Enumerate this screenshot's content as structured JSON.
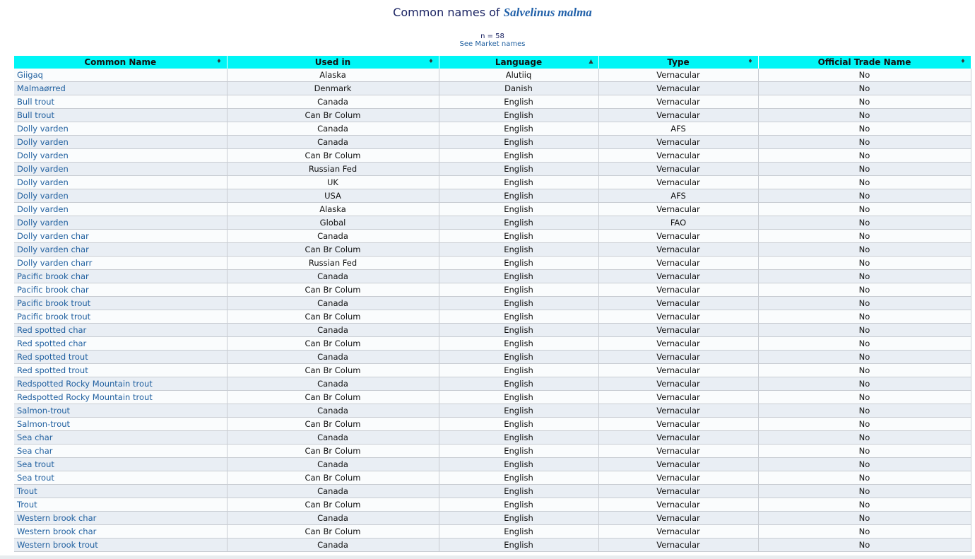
{
  "header": {
    "title_prefix": "Common names of",
    "species": "Salvelinus malma",
    "count": "n = 58",
    "market_link": "See Market names"
  },
  "table": {
    "columns": [
      {
        "label": "Common Name",
        "sort": "both"
      },
      {
        "label": "Used in",
        "sort": "both"
      },
      {
        "label": "Language",
        "sort": "asc"
      },
      {
        "label": "Type",
        "sort": "both"
      },
      {
        "label": "Official Trade Name",
        "sort": "both"
      }
    ],
    "rows": [
      [
        "Giigaq",
        "Alaska",
        "Alutiiq",
        "Vernacular",
        "No"
      ],
      [
        "Malmaørred",
        "Denmark",
        "Danish",
        "Vernacular",
        "No"
      ],
      [
        "Bull trout",
        "Canada",
        "English",
        "Vernacular",
        "No"
      ],
      [
        "Bull trout",
        "Can Br Colum",
        "English",
        "Vernacular",
        "No"
      ],
      [
        "Dolly varden",
        "Canada",
        "English",
        "AFS",
        "No"
      ],
      [
        "Dolly varden",
        "Canada",
        "English",
        "Vernacular",
        "No"
      ],
      [
        "Dolly varden",
        "Can Br Colum",
        "English",
        "Vernacular",
        "No"
      ],
      [
        "Dolly varden",
        "Russian Fed",
        "English",
        "Vernacular",
        "No"
      ],
      [
        "Dolly varden",
        "UK",
        "English",
        "Vernacular",
        "No"
      ],
      [
        "Dolly varden",
        "USA",
        "English",
        "AFS",
        "No"
      ],
      [
        "Dolly varden",
        "Alaska",
        "English",
        "Vernacular",
        "No"
      ],
      [
        "Dolly varden",
        "Global",
        "English",
        "FAO",
        "No"
      ],
      [
        "Dolly varden char",
        "Canada",
        "English",
        "Vernacular",
        "No"
      ],
      [
        "Dolly varden char",
        "Can Br Colum",
        "English",
        "Vernacular",
        "No"
      ],
      [
        "Dolly varden charr",
        "Russian Fed",
        "English",
        "Vernacular",
        "No"
      ],
      [
        "Pacific brook char",
        "Canada",
        "English",
        "Vernacular",
        "No"
      ],
      [
        "Pacific brook char",
        "Can Br Colum",
        "English",
        "Vernacular",
        "No"
      ],
      [
        "Pacific brook trout",
        "Canada",
        "English",
        "Vernacular",
        "No"
      ],
      [
        "Pacific brook trout",
        "Can Br Colum",
        "English",
        "Vernacular",
        "No"
      ],
      [
        "Red spotted char",
        "Canada",
        "English",
        "Vernacular",
        "No"
      ],
      [
        "Red spotted char",
        "Can Br Colum",
        "English",
        "Vernacular",
        "No"
      ],
      [
        "Red spotted trout",
        "Canada",
        "English",
        "Vernacular",
        "No"
      ],
      [
        "Red spotted trout",
        "Can Br Colum",
        "English",
        "Vernacular",
        "No"
      ],
      [
        "Redspotted Rocky Mountain trout",
        "Canada",
        "English",
        "Vernacular",
        "No"
      ],
      [
        "Redspotted Rocky Mountain trout",
        "Can Br Colum",
        "English",
        "Vernacular",
        "No"
      ],
      [
        "Salmon-trout",
        "Canada",
        "English",
        "Vernacular",
        "No"
      ],
      [
        "Salmon-trout",
        "Can Br Colum",
        "English",
        "Vernacular",
        "No"
      ],
      [
        "Sea char",
        "Canada",
        "English",
        "Vernacular",
        "No"
      ],
      [
        "Sea char",
        "Can Br Colum",
        "English",
        "Vernacular",
        "No"
      ],
      [
        "Sea trout",
        "Canada",
        "English",
        "Vernacular",
        "No"
      ],
      [
        "Sea trout",
        "Can Br Colum",
        "English",
        "Vernacular",
        "No"
      ],
      [
        "Trout",
        "Canada",
        "English",
        "Vernacular",
        "No"
      ],
      [
        "Trout",
        "Can Br Colum",
        "English",
        "Vernacular",
        "No"
      ],
      [
        "Western brook char",
        "Canada",
        "English",
        "Vernacular",
        "No"
      ],
      [
        "Western brook char",
        "Can Br Colum",
        "English",
        "Vernacular",
        "No"
      ],
      [
        "Western brook trout",
        "Canada",
        "English",
        "Vernacular",
        "No"
      ]
    ]
  },
  "colors": {
    "header_bg": "#00f6f6",
    "link": "#1f5f9f",
    "row_alt": "#e9eef4"
  }
}
